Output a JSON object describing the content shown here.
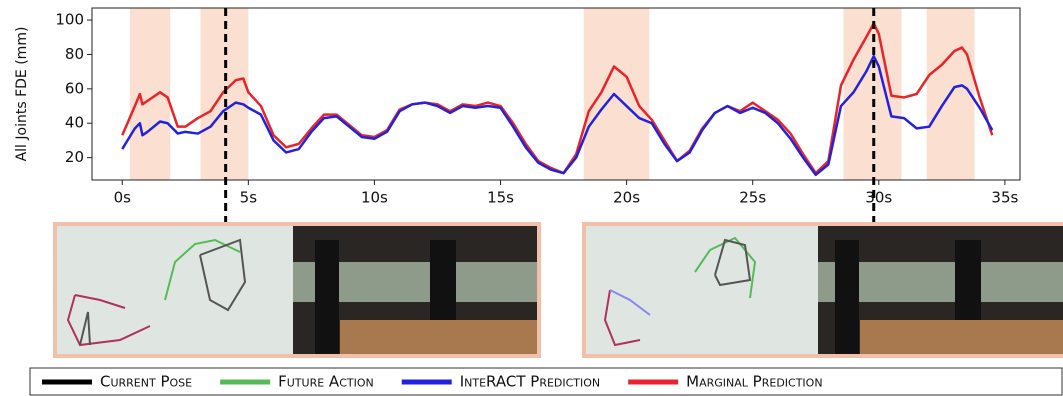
{
  "chart_data": {
    "type": "line",
    "y_label": "All Joints FDE (mm)",
    "x": [
      0,
      0.5,
      0.7,
      0.8,
      1,
      1.5,
      1.8,
      2.2,
      2.5,
      3,
      3.5,
      4,
      4.5,
      4.8,
      5,
      5.5,
      6,
      6.5,
      7,
      7.5,
      8,
      8.5,
      9,
      9.5,
      10,
      10.5,
      11,
      11.5,
      12,
      12.5,
      13,
      13.5,
      14,
      14.5,
      15,
      15.5,
      16,
      16.5,
      17,
      17.5,
      18,
      18.5,
      19,
      19.5,
      20,
      20.5,
      21,
      21.5,
      22,
      22.5,
      23,
      23.5,
      24,
      24.5,
      25,
      25.5,
      26,
      26.5,
      27,
      27.5,
      28,
      28.5,
      29,
      29.5,
      29.8,
      30,
      30.5,
      31,
      31.5,
      32,
      32.5,
      33,
      33.3,
      33.5,
      34,
      34.5
    ],
    "series": [
      {
        "name": "Marginal Prediction",
        "color": "#e8242a",
        "values": [
          33,
          50,
          57,
          51,
          53,
          58,
          55,
          38,
          38,
          43,
          47,
          58,
          65,
          66,
          58,
          50,
          33,
          26,
          28,
          37,
          45,
          45,
          39,
          33,
          32,
          36,
          48,
          51,
          52,
          51,
          47,
          51,
          50,
          52,
          50,
          40,
          28,
          18,
          14,
          11,
          22,
          47,
          58,
          73,
          67,
          50,
          42,
          30,
          18,
          24,
          37,
          46,
          50,
          47,
          52,
          47,
          42,
          34,
          22,
          11,
          18,
          62,
          77,
          90,
          98,
          92,
          56,
          55,
          57,
          68,
          74,
          82,
          84,
          80,
          55,
          33
        ]
      },
      {
        "name": "InteRACT Prediction",
        "color": "#2222dd",
        "values": [
          25,
          37,
          40,
          33,
          35,
          41,
          40,
          34,
          35,
          34,
          38,
          47,
          52,
          51,
          49,
          45,
          30,
          23,
          25,
          35,
          43,
          44,
          38,
          32,
          31,
          35,
          47,
          51,
          52,
          50,
          46,
          50,
          49,
          50,
          49,
          38,
          26,
          17,
          13,
          11,
          20,
          38,
          48,
          57,
          50,
          43,
          40,
          28,
          18,
          23,
          36,
          46,
          50,
          46,
          49,
          46,
          40,
          31,
          20,
          10,
          16,
          50,
          58,
          70,
          79,
          73,
          44,
          43,
          37,
          38,
          50,
          61,
          62,
          60,
          49,
          36
        ]
      }
    ],
    "highlight_spans": [
      [
        0.3,
        1.9
      ],
      [
        3.1,
        5.0
      ],
      [
        18.3,
        20.9
      ],
      [
        28.6,
        30.9
      ],
      [
        31.9,
        33.8
      ]
    ],
    "highlight_color": "#fbe0d2",
    "current_pose_times": [
      4.1,
      29.8
    ],
    "xlim": [
      -1.2,
      35.6
    ],
    "xticks": [
      {
        "value": 0,
        "label": "0s"
      },
      {
        "value": 5,
        "label": "5s"
      },
      {
        "value": 10,
        "label": "10s"
      },
      {
        "value": 15,
        "label": "15s"
      },
      {
        "value": 20,
        "label": "20s"
      },
      {
        "value": 25,
        "label": "25s"
      },
      {
        "value": 30,
        "label": "30s"
      },
      {
        "value": 35,
        "label": "35s"
      }
    ],
    "ylim": [
      7,
      107
    ],
    "yticks": [
      20,
      40,
      60,
      80,
      100
    ],
    "legend": [
      {
        "name": "Current Pose",
        "color": "#000000"
      },
      {
        "name": "Future Action",
        "color": "#55bb55"
      },
      {
        "name": "InteRACT Prediction",
        "color": "#2222dd"
      },
      {
        "name": "Marginal Prediction",
        "color": "#e8242a"
      }
    ]
  }
}
